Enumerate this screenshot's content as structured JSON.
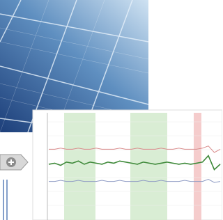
{
  "chart_data": {
    "type": "line",
    "ylim": [
      0,
      100
    ],
    "series": [
      {
        "color": "#d98a8a",
        "values": [
          66,
          66,
          67,
          66,
          66,
          67,
          66,
          66,
          67,
          66,
          66,
          66,
          67,
          66,
          66,
          67,
          66,
          66,
          66,
          67,
          66,
          66,
          67,
          66,
          66,
          66,
          67,
          69,
          63,
          66
        ]
      },
      {
        "color": "#3f8a3a",
        "values": [
          52,
          53,
          51,
          54,
          53,
          55,
          52,
          54,
          53,
          52,
          54,
          53,
          55,
          54,
          53,
          52,
          54,
          53,
          52,
          53,
          54,
          53,
          52,
          53,
          52,
          53,
          54,
          60,
          47,
          52
        ]
      },
      {
        "color": "#8e9bc4",
        "values": [
          36,
          36,
          37,
          36,
          36,
          37,
          36,
          36,
          36,
          37,
          36,
          36,
          37,
          36,
          36,
          36,
          37,
          36,
          36,
          37,
          36,
          36,
          36,
          37,
          36,
          36,
          36,
          38,
          35,
          36
        ]
      }
    ]
  }
}
